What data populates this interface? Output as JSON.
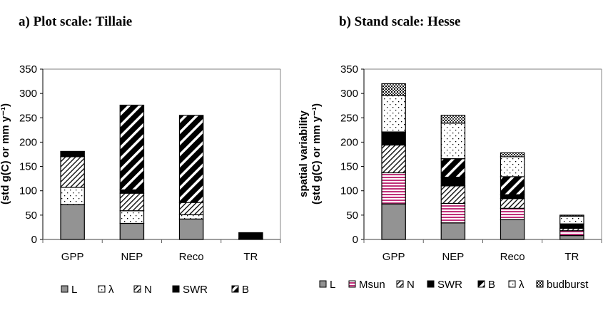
{
  "chart_data": [
    {
      "type": "bar",
      "stacked": true,
      "title": "a) Plot scale: Tillaie",
      "xlabel": "",
      "ylabel": "(std g(C) or mm y-1)",
      "ylim": [
        0,
        350
      ],
      "yticks": [
        0,
        50,
        100,
        150,
        200,
        250,
        300,
        350
      ],
      "categories": [
        "GPP",
        "NEP",
        "Reco",
        "TR"
      ],
      "legend_position": "bottom",
      "series": [
        {
          "name": "L",
          "pattern": "solid-gray",
          "values": [
            72,
            33,
            42,
            2
          ]
        },
        {
          "name": "λ",
          "pattern": "dots",
          "values": [
            35,
            26,
            9,
            0
          ]
        },
        {
          "name": "N",
          "pattern": "thin-diagonal",
          "values": [
            63,
            36,
            25,
            0
          ]
        },
        {
          "name": "SWR",
          "pattern": "solid-black",
          "values": [
            11,
            7,
            0,
            12
          ]
        },
        {
          "name": "B",
          "pattern": "wide-diagonal",
          "values": [
            0,
            174,
            179,
            0
          ]
        }
      ]
    },
    {
      "type": "bar",
      "stacked": true,
      "title": "b) Stand scale:  Hesse",
      "xlabel": "",
      "ylabel": "spatial variability (std g(C) or mm y-1)",
      "ylim": [
        0,
        350
      ],
      "yticks": [
        0,
        50,
        100,
        150,
        200,
        250,
        300,
        350
      ],
      "categories": [
        "GPP",
        "NEP",
        "Reco",
        "TR"
      ],
      "legend_position": "bottom",
      "series": [
        {
          "name": "L",
          "pattern": "solid-gray",
          "values": [
            73,
            34,
            41,
            8
          ]
        },
        {
          "name": "Msun",
          "pattern": "pink-horizontal",
          "values": [
            64,
            40,
            23,
            10
          ]
        },
        {
          "name": "N",
          "pattern": "thin-diagonal",
          "values": [
            57,
            36,
            20,
            5
          ]
        },
        {
          "name": "SWR",
          "pattern": "solid-black",
          "values": [
            27,
            18,
            8,
            9
          ]
        },
        {
          "name": "B",
          "pattern": "wide-diagonal",
          "values": [
            0,
            38,
            37,
            0
          ]
        },
        {
          "name": "λ",
          "pattern": "dots",
          "values": [
            75,
            73,
            41,
            16
          ]
        },
        {
          "name": "budburst",
          "pattern": "dense-dots",
          "values": [
            24,
            16,
            8,
            2
          ]
        }
      ]
    }
  ]
}
